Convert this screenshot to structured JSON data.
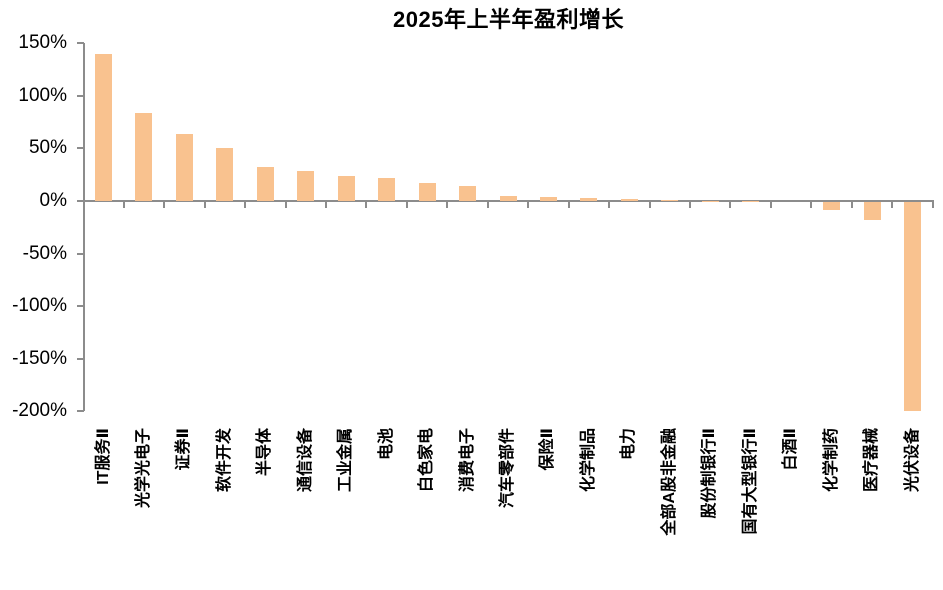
{
  "title": "2025年上半年盈利增长",
  "chart_data": {
    "type": "bar",
    "title": "2025年上半年盈利增长",
    "unit": "%",
    "categories": [
      "IT服务Ⅱ",
      "光学光电子",
      "证券Ⅱ",
      "软件开发",
      "半导体",
      "通信设备",
      "工业金属",
      "电池",
      "白色家电",
      "消费电子",
      "汽车零部件",
      "保险Ⅱ",
      "化学制品",
      "电力",
      "全部A股非金融",
      "股份制银行Ⅱ",
      "国有大型银行Ⅱ",
      "白酒Ⅱ",
      "化学制药",
      "医疗器械",
      "光伏设备"
    ],
    "values": [
      140,
      84,
      64,
      50,
      32,
      29,
      24,
      22,
      17,
      14,
      5,
      4,
      3,
      1.5,
      1,
      0.2,
      0.1,
      -0.5,
      -9,
      -18,
      -200
    ],
    "ylim": [
      -200,
      150
    ],
    "ytick_step": 50,
    "ytick_labels": [
      "150%",
      "100%",
      "50%",
      "0%",
      "-50%",
      "-100%",
      "-150%",
      "-200%"
    ],
    "grid": "off",
    "legend": "none",
    "bar_color": "#F9C28F",
    "axis_color": "#8C8C8C",
    "text_color": "#000000"
  }
}
